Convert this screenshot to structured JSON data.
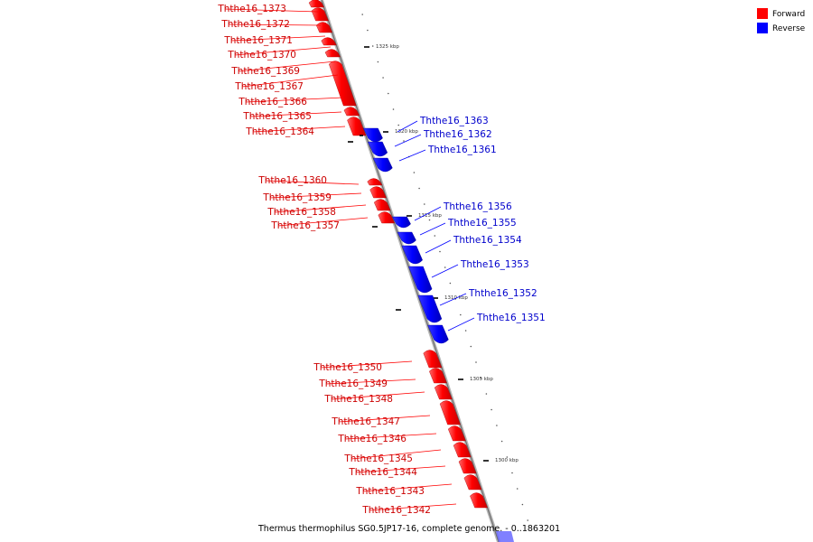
{
  "legend": {
    "forward_label": "Forward",
    "forward_color": "#ff0000",
    "reverse_label": "Reverse",
    "reverse_color": "#0000ff"
  },
  "caption": "Thermus thermophilus SG0.5JP17-16, complete genome. - 0..1863201",
  "ticks": [
    {
      "label": "1325 kbp",
      "kbp": 1325
    },
    {
      "label": "1320 kbp",
      "kbp": 1320
    },
    {
      "label": "1315 kbp",
      "kbp": 1315
    },
    {
      "label": "1310 kbp",
      "kbp": 1310
    },
    {
      "label": "1305 kbp",
      "kbp": 1305
    },
    {
      "label": "1300 kbp",
      "kbp": 1300
    }
  ],
  "genes": [
    {
      "name": "Ththe16_1373",
      "strand": "forward"
    },
    {
      "name": "Ththe16_1372",
      "strand": "forward"
    },
    {
      "name": "Ththe16_1371",
      "strand": "forward"
    },
    {
      "name": "Ththe16_1370",
      "strand": "forward"
    },
    {
      "name": "Ththe16_1369",
      "strand": "forward"
    },
    {
      "name": "Ththe16_1367",
      "strand": "forward"
    },
    {
      "name": "Ththe16_1366",
      "strand": "forward"
    },
    {
      "name": "Ththe16_1365",
      "strand": "forward"
    },
    {
      "name": "Ththe16_1364",
      "strand": "forward"
    },
    {
      "name": "Ththe16_1363",
      "strand": "reverse"
    },
    {
      "name": "Ththe16_1362",
      "strand": "reverse"
    },
    {
      "name": "Ththe16_1361",
      "strand": "reverse"
    },
    {
      "name": "Ththe16_1360",
      "strand": "forward"
    },
    {
      "name": "Ththe16_1359",
      "strand": "forward"
    },
    {
      "name": "Ththe16_1358",
      "strand": "forward"
    },
    {
      "name": "Ththe16_1357",
      "strand": "forward"
    },
    {
      "name": "Ththe16_1356",
      "strand": "reverse"
    },
    {
      "name": "Ththe16_1355",
      "strand": "reverse"
    },
    {
      "name": "Ththe16_1354",
      "strand": "reverse"
    },
    {
      "name": "Ththe16_1353",
      "strand": "reverse"
    },
    {
      "name": "Ththe16_1352",
      "strand": "reverse"
    },
    {
      "name": "Ththe16_1351",
      "strand": "reverse"
    },
    {
      "name": "Ththe16_1350",
      "strand": "forward"
    },
    {
      "name": "Ththe16_1349",
      "strand": "forward"
    },
    {
      "name": "Ththe16_1348",
      "strand": "forward"
    },
    {
      "name": "Ththe16_1347",
      "strand": "forward"
    },
    {
      "name": "Ththe16_1346",
      "strand": "forward"
    },
    {
      "name": "Ththe16_1345",
      "strand": "forward"
    },
    {
      "name": "Ththe16_1344",
      "strand": "forward"
    },
    {
      "name": "Ththe16_1343",
      "strand": "forward"
    },
    {
      "name": "Ththe16_1342",
      "strand": "forward"
    }
  ]
}
